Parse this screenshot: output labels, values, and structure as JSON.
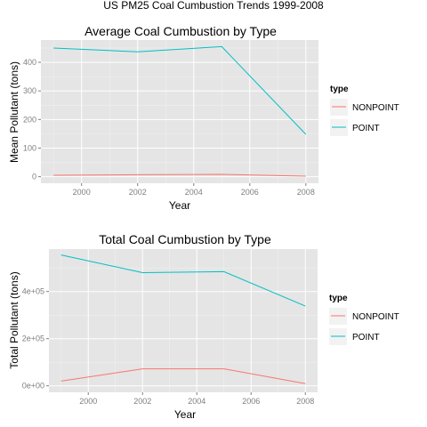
{
  "figure": {
    "title": "US PM25 Coal Cumbustion Trends 1999-2008"
  },
  "chart_data": [
    {
      "type": "line",
      "title": "Average Coal Cumbustion by Type",
      "xlabel": "Year",
      "ylabel": "Mean Pollutant (tons)",
      "x": [
        1999,
        2002,
        2005,
        2008
      ],
      "xlim": [
        1998.55,
        2008.45
      ],
      "ylim": [
        -23,
        478
      ],
      "x_ticks": [
        2000,
        2002,
        2004,
        2006,
        2008
      ],
      "y_ticks": [
        0,
        100,
        200,
        300,
        400
      ],
      "x_tick_labels": [
        "2000",
        "2002",
        "2004",
        "2006",
        "2008"
      ],
      "y_tick_labels": [
        "0",
        "100",
        "200",
        "300",
        "400"
      ],
      "grid": true,
      "legend_title": "type",
      "legend_position": "right",
      "series": [
        {
          "name": "NONPOINT",
          "color": "#F8766D",
          "values": [
            5,
            7,
            8,
            2
          ]
        },
        {
          "name": "POINT",
          "color": "#00BFC4",
          "values": [
            450,
            437,
            455,
            148
          ]
        }
      ]
    },
    {
      "type": "line",
      "title": "Total Coal Cumbustion by Type",
      "xlabel": "Year",
      "ylabel": "Total Pollutant (tons)",
      "x": [
        1999,
        2002,
        2005,
        2008
      ],
      "xlim": [
        1998.55,
        2008.45
      ],
      "ylim": [
        -27500,
        580000
      ],
      "x_ticks": [
        2000,
        2002,
        2004,
        2006,
        2008
      ],
      "y_ticks": [
        0,
        200000,
        400000
      ],
      "x_tick_labels": [
        "2000",
        "2002",
        "2004",
        "2006",
        "2008"
      ],
      "y_tick_labels": [
        "0e+00",
        "2e+05",
        "4e+05"
      ],
      "grid": true,
      "legend_title": "type",
      "legend_position": "right",
      "series": [
        {
          "name": "NONPOINT",
          "color": "#F8766D",
          "values": [
            20000,
            72000,
            72000,
            9000
          ]
        },
        {
          "name": "POINT",
          "color": "#00BFC4",
          "values": [
            555000,
            480000,
            484000,
            338000
          ]
        }
      ]
    }
  ]
}
